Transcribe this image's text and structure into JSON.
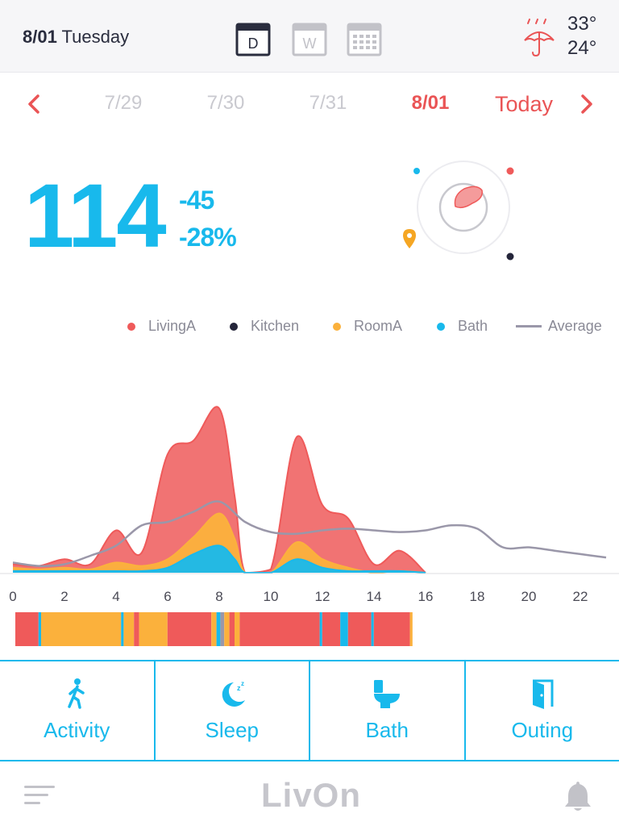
{
  "header": {
    "date_bold": "8/01",
    "weekday": "Tuesday",
    "views": [
      {
        "name": "day",
        "letter": "D",
        "active": true
      },
      {
        "name": "week",
        "letter": "W",
        "active": false
      },
      {
        "name": "month",
        "letter": "",
        "active": false
      }
    ],
    "weather": {
      "icon": "rain-umbrella-icon",
      "high": "33°",
      "low": "24°"
    }
  },
  "nav": {
    "dates": [
      "7/29",
      "7/30",
      "7/31",
      "8/01"
    ],
    "active_index": 3,
    "today_label": "Today"
  },
  "score": {
    "value": "114",
    "delta_abs": "-45",
    "delta_pct": "-28%"
  },
  "legend": [
    {
      "label": "LivingA",
      "color": "#ef5a5a",
      "type": "dot"
    },
    {
      "label": "Kitchen",
      "color": "#24253a",
      "type": "dot"
    },
    {
      "label": "RoomA",
      "color": "#fbb13c",
      "type": "dot"
    },
    {
      "label": "Bath",
      "color": "#18b9ec",
      "type": "dot"
    },
    {
      "label": "Average",
      "color": "#9a97a9",
      "type": "line"
    }
  ],
  "chart_data": {
    "type": "area",
    "x_ticks": [
      "0",
      "2",
      "4",
      "6",
      "8",
      "10",
      "12",
      "14",
      "16",
      "18",
      "20",
      "22"
    ],
    "xlim": [
      0,
      23
    ],
    "ylim": [
      0,
      100
    ],
    "series": [
      {
        "name": "Bath",
        "color": "#18b9ec",
        "x": [
          0,
          1,
          2,
          3,
          4,
          5,
          6,
          7,
          8,
          8.6,
          9,
          10,
          11,
          12,
          13,
          14,
          15,
          16
        ],
        "values": [
          1,
          1,
          1,
          1,
          1,
          1,
          3,
          11,
          16,
          8,
          0,
          0,
          8,
          3,
          1,
          1,
          1,
          0
        ]
      },
      {
        "name": "RoomA",
        "color": "#fbb13c",
        "x": [
          0,
          1,
          2,
          3,
          4,
          5,
          6,
          7,
          8,
          8.6,
          9,
          10,
          11,
          12,
          13,
          14,
          15,
          16
        ],
        "values": [
          3,
          2,
          3,
          2,
          6,
          4,
          8,
          21,
          35,
          20,
          0,
          0,
          18,
          8,
          3,
          0,
          1,
          0
        ]
      },
      {
        "name": "LivingA",
        "color": "#ef5a5a",
        "x": [
          0,
          1,
          2,
          3,
          4,
          5,
          6,
          7,
          8,
          8.6,
          9,
          10,
          11,
          12,
          13,
          14,
          15,
          16
        ],
        "values": [
          5,
          4,
          8,
          5,
          25,
          12,
          70,
          78,
          97,
          45,
          0,
          2,
          80,
          40,
          32,
          5,
          13,
          0
        ]
      },
      {
        "name": "Average",
        "color": "#9a97a9",
        "x": [
          0,
          1,
          2,
          3,
          4,
          5,
          6,
          7,
          8,
          9,
          10,
          11,
          12,
          13,
          14,
          15,
          16,
          17,
          18,
          19,
          20,
          21,
          22,
          23
        ],
        "values": [
          6,
          4,
          5,
          10,
          16,
          28,
          30,
          36,
          42,
          30,
          24,
          23,
          25,
          26,
          25,
          24,
          25,
          28,
          26,
          15,
          15,
          13,
          11,
          9
        ]
      }
    ],
    "timeline": [
      {
        "start": 0,
        "end": 0.9,
        "color": "#ef5a5a"
      },
      {
        "start": 0.9,
        "end": 1.0,
        "color": "#18b9ec"
      },
      {
        "start": 1.0,
        "end": 4.1,
        "color": "#fbb13c"
      },
      {
        "start": 4.1,
        "end": 4.2,
        "color": "#18b9ec"
      },
      {
        "start": 4.2,
        "end": 4.6,
        "color": "#fbb13c"
      },
      {
        "start": 4.6,
        "end": 4.8,
        "color": "#ef5a5a"
      },
      {
        "start": 4.8,
        "end": 5.9,
        "color": "#fbb13c"
      },
      {
        "start": 5.9,
        "end": 7.6,
        "color": "#ef5a5a"
      },
      {
        "start": 7.6,
        "end": 7.8,
        "color": "#fbb13c"
      },
      {
        "start": 7.8,
        "end": 7.95,
        "color": "#18b9ec"
      },
      {
        "start": 7.95,
        "end": 8.1,
        "color": "#9a97a9"
      },
      {
        "start": 8.1,
        "end": 8.3,
        "color": "#fbb13c"
      },
      {
        "start": 8.3,
        "end": 8.5,
        "color": "#ef5a5a"
      },
      {
        "start": 8.5,
        "end": 8.7,
        "color": "#fbb13c"
      },
      {
        "start": 8.7,
        "end": 11.8,
        "color": "#ef5a5a"
      },
      {
        "start": 11.8,
        "end": 11.9,
        "color": "#18b9ec"
      },
      {
        "start": 11.9,
        "end": 12.6,
        "color": "#ef5a5a"
      },
      {
        "start": 12.6,
        "end": 12.9,
        "color": "#18b9ec"
      },
      {
        "start": 12.9,
        "end": 13.8,
        "color": "#ef5a5a"
      },
      {
        "start": 13.8,
        "end": 13.9,
        "color": "#18b9ec"
      },
      {
        "start": 13.9,
        "end": 15.3,
        "color": "#ef5a5a"
      },
      {
        "start": 15.3,
        "end": 15.4,
        "color": "#fbb13c"
      }
    ]
  },
  "roommap": {
    "dots": [
      {
        "room": "Bath",
        "color": "#18b9ec"
      },
      {
        "room": "LivingA",
        "color": "#ef5a5a"
      },
      {
        "room": "RoomA",
        "color": "#f5a623"
      },
      {
        "room": "Kitchen",
        "color": "#24253a"
      }
    ]
  },
  "categories": [
    {
      "label": "Activity",
      "icon": "walking-person-icon"
    },
    {
      "label": "Sleep",
      "icon": "moon-sleep-icon"
    },
    {
      "label": "Bath",
      "icon": "toilet-icon"
    },
    {
      "label": "Outing",
      "icon": "door-icon"
    }
  ],
  "footer": {
    "logo": "LivOn",
    "menu_icon": "menu-icon",
    "bell_icon": "bell-icon"
  }
}
